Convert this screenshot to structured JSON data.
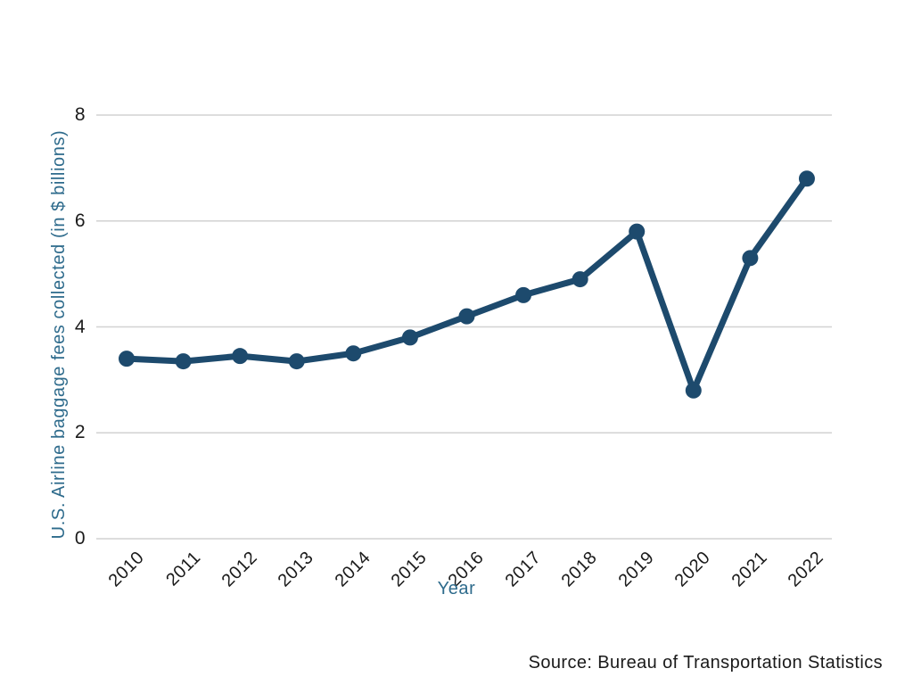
{
  "chart_data": {
    "type": "line",
    "title": "",
    "x": [
      2010,
      2011,
      2012,
      2013,
      2014,
      2015,
      2016,
      2017,
      2018,
      2019,
      2020,
      2021,
      2022
    ],
    "values": [
      3.4,
      3.35,
      3.45,
      3.35,
      3.5,
      3.8,
      4.2,
      4.6,
      4.9,
      5.8,
      2.8,
      5.3,
      6.8
    ],
    "series": [
      {
        "name": "U.S. Airline baggage fees collected",
        "values": [
          3.4,
          3.35,
          3.45,
          3.35,
          3.5,
          3.8,
          4.2,
          4.6,
          4.9,
          5.8,
          2.8,
          5.3,
          6.8
        ]
      }
    ],
    "xlabel": "Year",
    "ylabel": "U.S. Airline baggage fees collected (in $ billions)",
    "yticks": [
      0,
      2,
      4,
      6,
      8
    ],
    "ylim": [
      0,
      8
    ],
    "grid": "horizontal-only",
    "legend_position": "none",
    "marker": "filled-circle",
    "colors": {
      "line": "#1d4a6d",
      "marker": "#1d4a6d",
      "axis_title": "#2e6b8c",
      "tick_text": "#1a1a1a",
      "gridline": "#d2d2d2",
      "background": "#ffffff"
    }
  },
  "source_note": "Source: Bureau of Transportation Statistics"
}
